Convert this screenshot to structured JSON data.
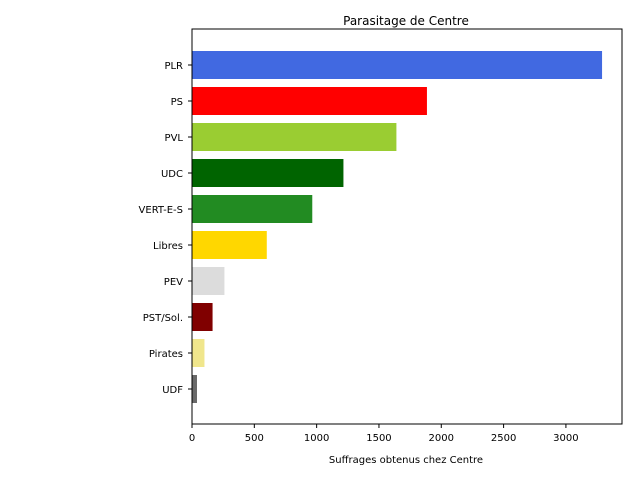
{
  "chart_data": {
    "type": "bar",
    "orientation": "horizontal",
    "title": "Parasitage de Centre",
    "xlabel": "Suffrages obtenus chez Centre",
    "ylabel": "",
    "xlim": [
      0,
      3450
    ],
    "xticks": [
      0,
      500,
      1000,
      1500,
      2000,
      2500,
      3000
    ],
    "grid": false,
    "categories": [
      "PLR",
      "PS",
      "PVL",
      "UDC",
      "VERT-E-S",
      "Libres",
      "PEV",
      "PST/Sol.",
      "Pirates",
      "UDF"
    ],
    "values": [
      3290,
      1885,
      1640,
      1215,
      965,
      600,
      260,
      165,
      100,
      40
    ],
    "colors": [
      "#4169E1",
      "#FF0000",
      "#9ACD32",
      "#006400",
      "#228B22",
      "#FFD700",
      "#DCDCDC",
      "#800000",
      "#F0E68C",
      "#696969"
    ]
  }
}
